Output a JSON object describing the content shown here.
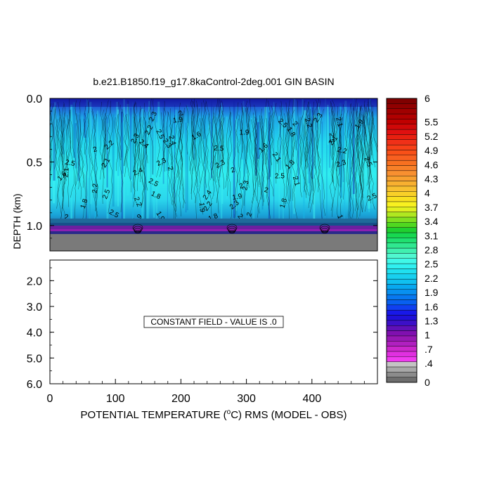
{
  "chart_data": {
    "type": "heatmap",
    "title": "b.e21.B1850.f19_g17.8kaControl-2deg.001 GIN BASIN",
    "xlabel_pre": "POTENTIAL TEMPERATURE (",
    "xlabel_sup": "o",
    "xlabel_post": "C) RMS (MODEL - OBS)",
    "ylabel": "DEPTH (km)",
    "xlim": [
      0,
      500
    ],
    "x_ticks": [
      0,
      100,
      200,
      300,
      400
    ],
    "x_tick_labels": [
      "0",
      "100",
      "200",
      "300",
      "400"
    ],
    "upper_panel": {
      "ylim": [
        0.0,
        1.2
      ],
      "y_ticks": [
        0.0,
        0.5,
        1.0
      ],
      "y_tick_labels": [
        "0.0",
        "0.5",
        "1.0"
      ],
      "seafloor_depth_km": 1.0,
      "contour_labels": [
        "2.2",
        "2.1",
        "2",
        "1.9",
        "2.4",
        "2.3",
        "2.5",
        "1.8",
        "1.6"
      ]
    },
    "lower_panel": {
      "ylim": [
        1.2,
        6.0
      ],
      "y_ticks": [
        2.0,
        3.0,
        4.0,
        5.0,
        6.0
      ],
      "y_tick_labels": [
        "2.0",
        "3.0",
        "4.0",
        "5.0",
        "6.0"
      ],
      "message": "CONSTANT FIELD - VALUE IS .0"
    },
    "colorbar": {
      "min": 0,
      "max": 6,
      "labels": [
        {
          "value": 0,
          "text": "0"
        },
        {
          "value": 0.4,
          "text": ".4"
        },
        {
          "value": 0.7,
          "text": ".7"
        },
        {
          "value": 1.0,
          "text": "1"
        },
        {
          "value": 1.3,
          "text": "1.3"
        },
        {
          "value": 1.6,
          "text": "1.6"
        },
        {
          "value": 1.9,
          "text": "1.9"
        },
        {
          "value": 2.2,
          "text": "2.2"
        },
        {
          "value": 2.5,
          "text": "2.5"
        },
        {
          "value": 2.8,
          "text": "2.8"
        },
        {
          "value": 3.1,
          "text": "3.1"
        },
        {
          "value": 3.4,
          "text": "3.4"
        },
        {
          "value": 3.7,
          "text": "3.7"
        },
        {
          "value": 4.0,
          "text": "4"
        },
        {
          "value": 4.3,
          "text": "4.3"
        },
        {
          "value": 4.6,
          "text": "4.6"
        },
        {
          "value": 4.9,
          "text": "4.9"
        },
        {
          "value": 5.2,
          "text": "5.2"
        },
        {
          "value": 5.5,
          "text": "5.5"
        },
        {
          "value": 6.0,
          "text": "6"
        }
      ],
      "colors": [
        "#6e6e6e",
        "#8c8c8c",
        "#a8a8a8",
        "#c4c4c4",
        "#f03cf0",
        "#e030e0",
        "#cc28cc",
        "#b020c0",
        "#9818b4",
        "#8010b0",
        "#6010b8",
        "#3c10c8",
        "#2010d8",
        "#1818e8",
        "#1040f0",
        "#0860f0",
        "#0878f0",
        "#0890f0",
        "#08a8f0",
        "#10c0f0",
        "#18d0f0",
        "#20e0f0",
        "#30f0f0",
        "#40f8e8",
        "#50f8d0",
        "#40f0b0",
        "#30e890",
        "#20e070",
        "#18d850",
        "#20d030",
        "#50d820",
        "#80e020",
        "#b0e820",
        "#e0f020",
        "#f8f020",
        "#f8e020",
        "#f8d028",
        "#f8c030",
        "#f8b030",
        "#f8a030",
        "#f89030",
        "#f88028",
        "#f87020",
        "#f86020",
        "#f85018",
        "#f84018",
        "#f03018",
        "#e82010",
        "#e01010",
        "#d00808",
        "#c00000",
        "#b00000",
        "#a00000",
        "#900000",
        "#800000"
      ]
    }
  }
}
